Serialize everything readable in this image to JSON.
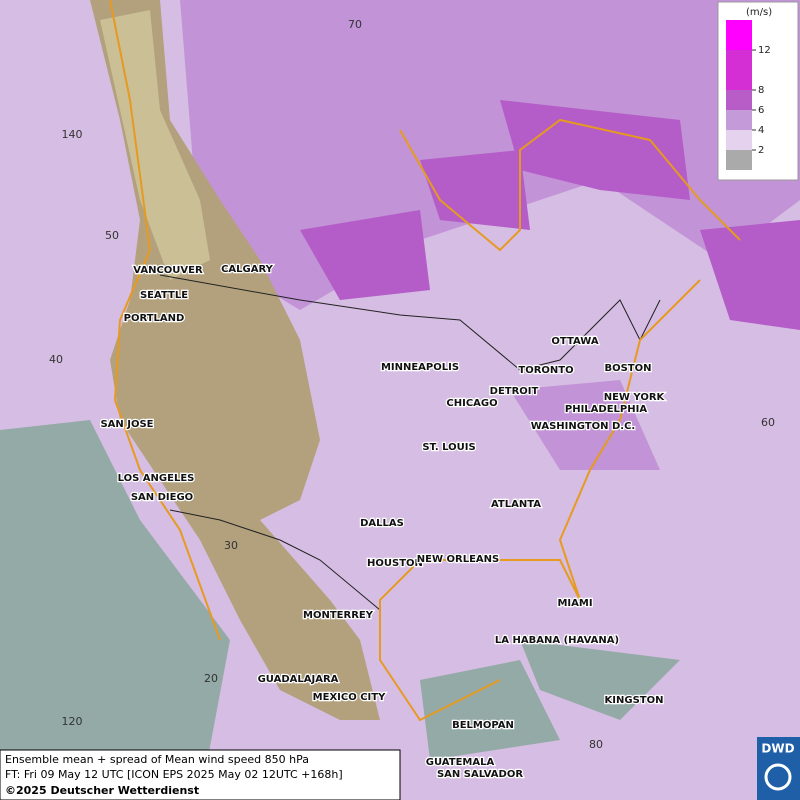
{
  "map": {
    "graticule": [
      "70",
      "140",
      "50",
      "40",
      "30",
      "20",
      "120",
      "80",
      "60"
    ],
    "cities": [
      "VANCOUVER",
      "CALGARY",
      "SEATTLE",
      "PORTLAND",
      "MINNEAPOLIS",
      "OTTAWA",
      "TORONTO",
      "BOSTON",
      "DETROIT",
      "NEW YORK",
      "PHILADELPHIA",
      "CHICAGO",
      "WASHINGTON D.C.",
      "SAN JOSE",
      "ST. LOUIS",
      "LOS ANGELES",
      "SAN DIEGO",
      "ATLANTA",
      "DALLAS",
      "HOUSTON",
      "NEW ORLEANS",
      "MIAMI",
      "MONTERREY",
      "LA HABANA (HAVANA)",
      "GUADALAJARA",
      "MEXICO CITY",
      "KINGSTON",
      "BELMOPAN",
      "GUATEMALA",
      "SAN SALVADOR"
    ]
  },
  "legend": {
    "unit": "(m/s)",
    "ticks": [
      12,
      8,
      6,
      4,
      2
    ]
  },
  "caption": {
    "line1": "Ensemble mean + spread of Mean wind speed 850 hPa",
    "line2": "FT: Fri 09 May 12 UTC [ICON EPS 2025 May 02 12UTC +168h]",
    "copyright": "©2025 Deutscher Wetterdienst"
  },
  "logo": "DWD"
}
